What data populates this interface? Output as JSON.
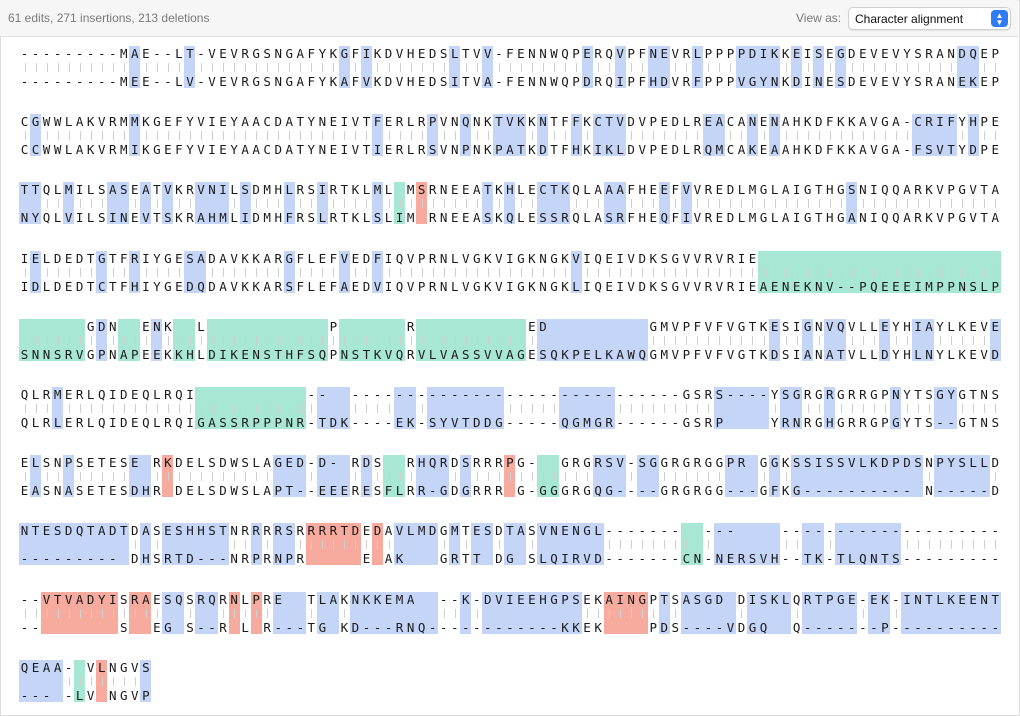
{
  "header": {
    "summary": "61 edits, 271 insertions, 213 deletions",
    "view_as_label": "View as:",
    "view_as_value": "Character alignment",
    "stepper_icon": "up-down-chevron-icon"
  },
  "colors": {
    "substitution": "#c4d5f8",
    "insertion": "#a9e7d5",
    "deletion": "#f6ab9e",
    "accent": "#2f7cf6"
  },
  "alignment": [
    {
      "top": "---------MAE--LT-VEVRGSNGAFYKGFIKDVHEDSLTVV-FENNWQPERQVPFNEVRLPPPPDIKKEISEGDEVEVYSRANDQEP",
      "bottom": "---------MEE--LV-VEVRGSNGAFYKAFVKDVHEDSITVA-FENNWQPDRQIPFHDVRFPPPVGYNKDINESDEVEVYSRANEKEP"
    },
    {
      "top": "CGWWLAKVRMMKGEFYVIEYAACDATYNEIVTFERLRPVNQNKTVKKNTFFKCTVDVPEDLREACANENAHKDFKKAVGA-CRIFYHPE",
      "bottom": "CCWWLAKVRMIKGEFYVIEYAACDATYNEIVTIERLRSVNPNKPATKDTFHKIKLDVPEDLRQMCAKEAAHKDFKKAVGA-FSVTYDPE"
    },
    {
      "top": "TTQLMILSASEATVKRVNILSDMHLRSIRTKLML MSRNEEATKHLECTKQLAAAFHEEFVVREDLMGLAIGTHGSNIQQARKVPGVTA",
      "bottom": "NYQLVILSINEVTSKRAHMLIDMHFRSLRTKLSLIM RNEEASKQLESSRQLASRFHEQFIVREDLMGLAIGTHGANIQQARKVPGVTA"
    },
    {
      "top": "IELDEDTGTFRIYGESADAVKKARGFLEFVEDFIQVPRNLVGKVIGKNGKVIQEIVDKSGVVRVRIE",
      "bottom": "IDLDEDTCTFHIYGEDQDAVKKARSFLEFAEDVIQVPRNLVGKVIGKNGKLIQEIVDKSGVVRVRIEAENEKNV--PQEEEIMPPNSLP"
    },
    {
      "top": "      GDN  ENK  L           P      R          ED         GMVPFVFVGTKESIGNVQVLLEYHIAYLKEVE",
      "bottom": "SNNSRVGPNAPEEKKHLDIKENSTHFSQPNSTKVQRVLVASSVVAGESQKPELKAWQGMVPFVFVGTKDSIANATVLLDYHLNYLKEVD"
    },
    {
      "top": "QLRMERLQIDEQLRQI          --  ------------------------------GSRS----YSGRGRGRRGPNYTSGYGTNS",
      "bottom": "QLRLERLQIDEQLRQIGASSRPPPNR-TDK----EK-SYVTDDG-----QGMGR------GSRP    YRNRGHGRRGPGYTS--GTNS"
    },
    {
      "top": "ELSNPSETESE RKDELSDWSLAGED-D- RDS  RHQRDSRRRPG-  GRGRSV-SGGRGRGGPR GGKSSISSVLKDPDSNPYSLLD",
      "bottom": "EASNASETESDHR DELSDWSLAPT--EEERESFLRR-GDGRRR G-GGGRGQG----GRGRGG---GFKG---------- N-----D"
    },
    {
      "top": "NTESDQTADTDASESHHSTNRRRRSRRRRTDEDAVLMDGMTESDTASVNENGL-------  ---    --------------------",
      "bottom": "--------- DHSRTD---NRPRNPR     E AK   GRTT DG SLQIRVD-------CN-NERSVH--TK-TLQNTS---------"
    },
    {
      "top": "--VTVADYISRAESQSRQRNLPRE  TLAKNKKEMA  --K-DVIEEHGPSEKAINGPTSASGD DISKLQRTPGE-EK-INTLKEENT",
      "bottom": "--       S  EG S--R L R---TG KD---RNQ------------KKEK    PDS----VDGQ  Q-------P----------"
    },
    {
      "top": "QEAA- VLNGVS",
      "bottom": "--- -LV NGVP"
    }
  ]
}
